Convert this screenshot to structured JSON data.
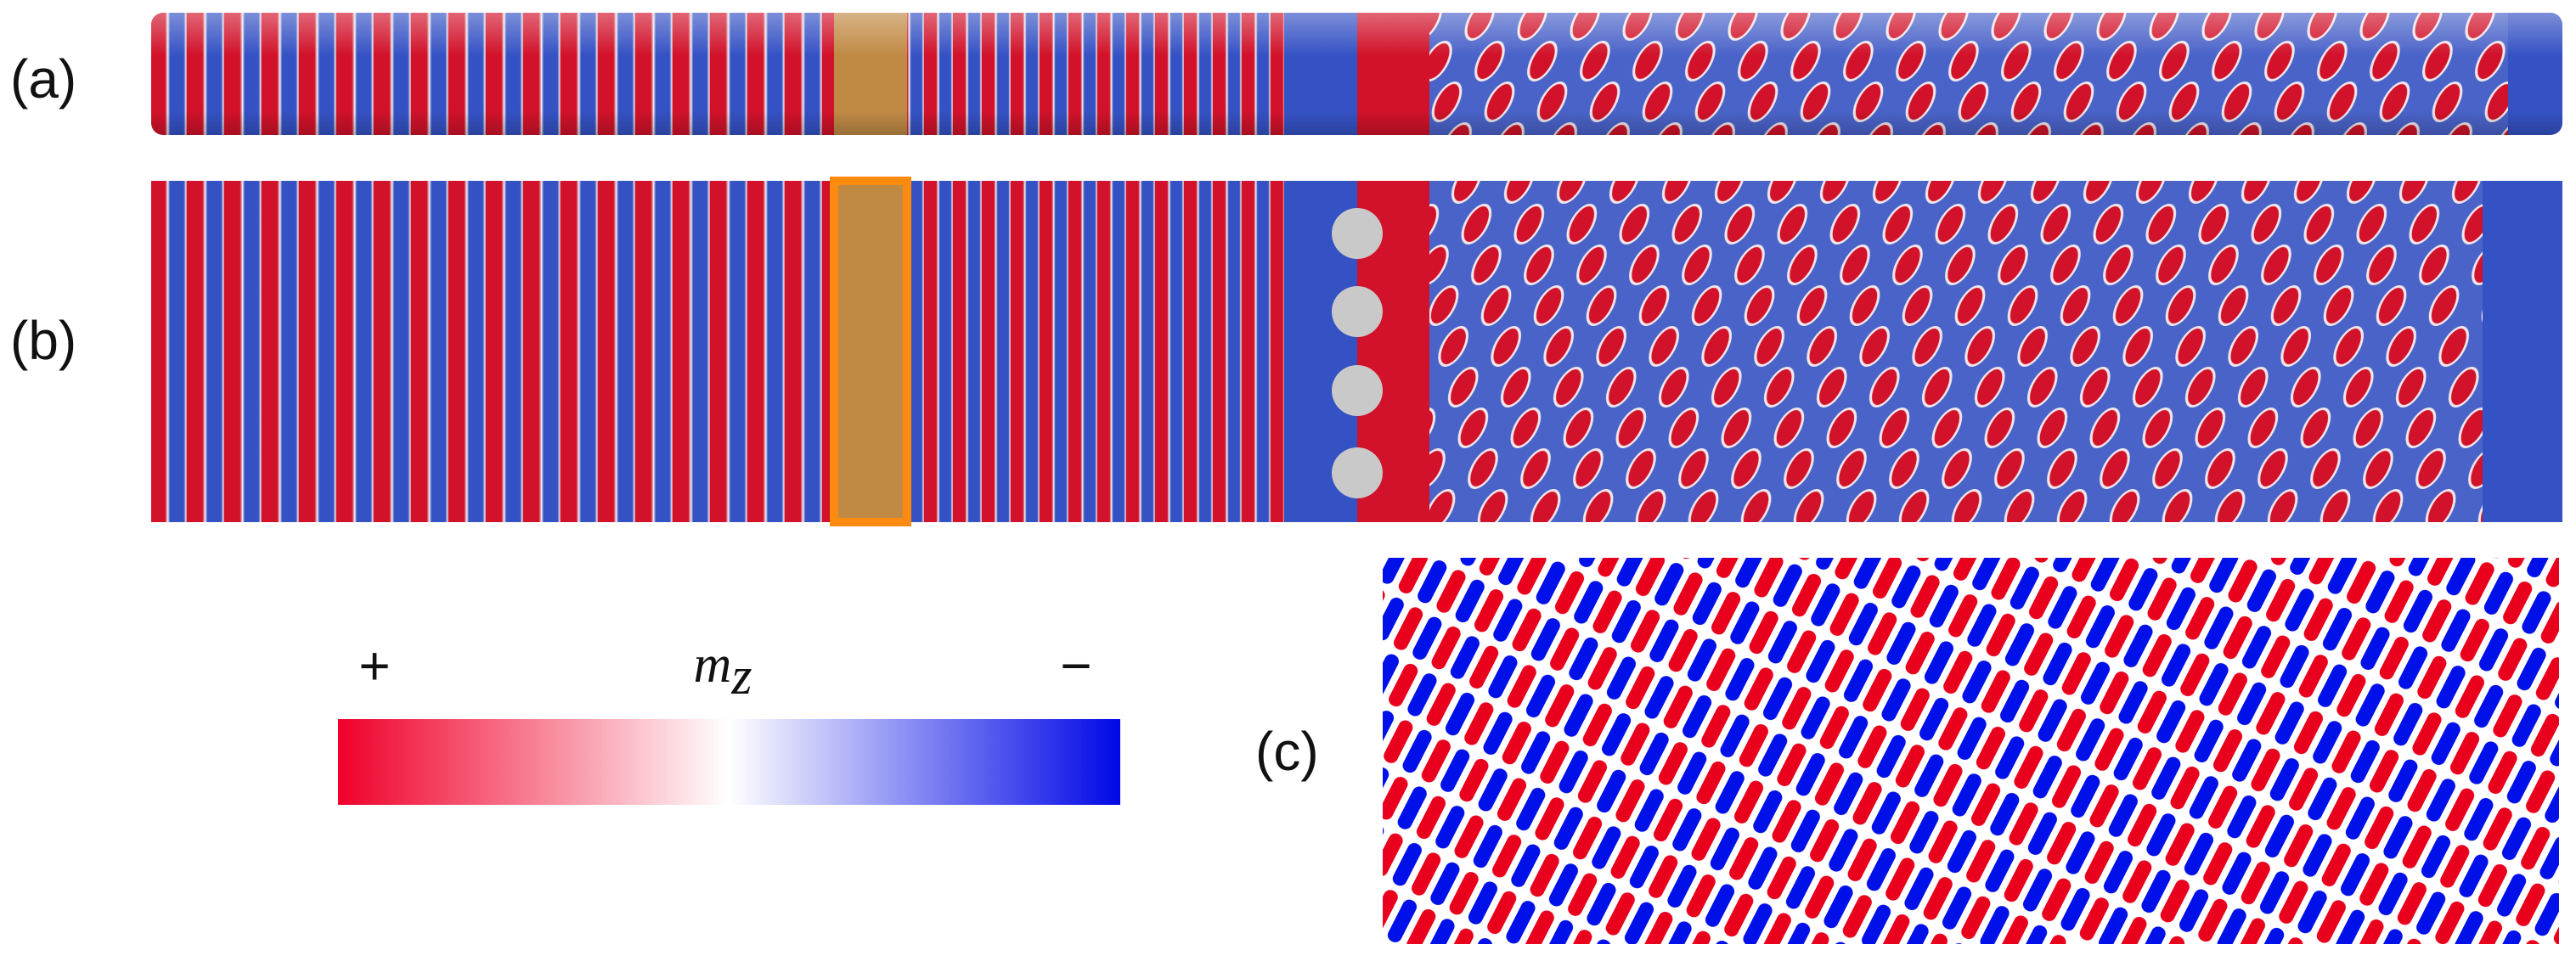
{
  "panels": {
    "a": {
      "label": "(a)"
    },
    "b": {
      "label": "(b)"
    },
    "c": {
      "label": "(c)"
    }
  },
  "colorbar": {
    "plus": "+",
    "symbol": "m",
    "subscript": "z",
    "minus": "−"
  }
}
